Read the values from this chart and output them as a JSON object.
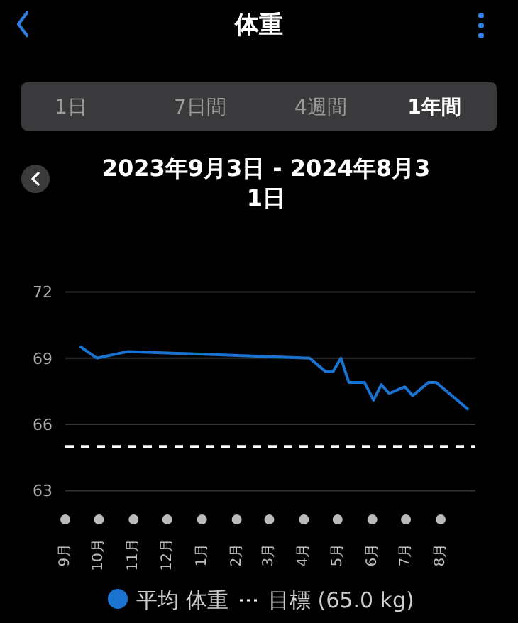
{
  "chart_data": {
    "type": "line",
    "title": "体重",
    "subtitle": "2023年9月3日 - 2024年8月31日",
    "annotations": [
      "1日",
      "7日間",
      "4週間",
      "1年間"
    ],
    "series": [
      {
        "name": "平均 体重",
        "color": "#1a73d0",
        "x": [
          "2023-09-15",
          "2023-09-29",
          "2023-10-27",
          "2024-04-06",
          "2024-04-20",
          "2024-04-27",
          "2024-05-04",
          "2024-05-11",
          "2024-05-25",
          "2024-06-02",
          "2024-06-09",
          "2024-06-16",
          "2024-06-30",
          "2024-07-07",
          "2024-07-21",
          "2024-07-28",
          "2024-08-25"
        ],
        "values": [
          69.5,
          69.0,
          69.3,
          69.0,
          68.4,
          68.4,
          69.0,
          67.9,
          67.9,
          67.1,
          67.8,
          67.4,
          67.7,
          67.3,
          67.9,
          67.9,
          66.7
        ]
      }
    ],
    "xlim": [
      "2023-09-01",
      "2024-09-01"
    ],
    "xticks": [
      {
        "value": "2023-09-01",
        "label": "9月"
      },
      {
        "value": "2023-10-01",
        "label": "10月"
      },
      {
        "value": "2023-11-01",
        "label": "11月"
      },
      {
        "value": "2023-12-01",
        "label": "12月"
      },
      {
        "value": "2024-01-01",
        "label": "1月"
      },
      {
        "value": "2024-02-01",
        "label": "2月"
      },
      {
        "value": "2024-03-01",
        "label": "3月"
      },
      {
        "value": "2024-04-01",
        "label": "4月"
      },
      {
        "value": "2024-05-01",
        "label": "5月"
      },
      {
        "value": "2024-06-01",
        "label": "6月"
      },
      {
        "value": "2024-07-01",
        "label": "7月"
      },
      {
        "value": "2024-08-01",
        "label": "8月"
      }
    ],
    "ylim": [
      63,
      72
    ],
    "yticks": [
      63,
      66,
      69,
      72
    ],
    "grid": "y",
    "legend": "bottom",
    "marker": "none",
    "line_style": "solid",
    "ref_lines": [
      {
        "axis": "y",
        "value": 65.0,
        "label": "目標 (65.0 kg)",
        "color": "#ffffff",
        "line_style": "dashed"
      }
    ]
  }
}
